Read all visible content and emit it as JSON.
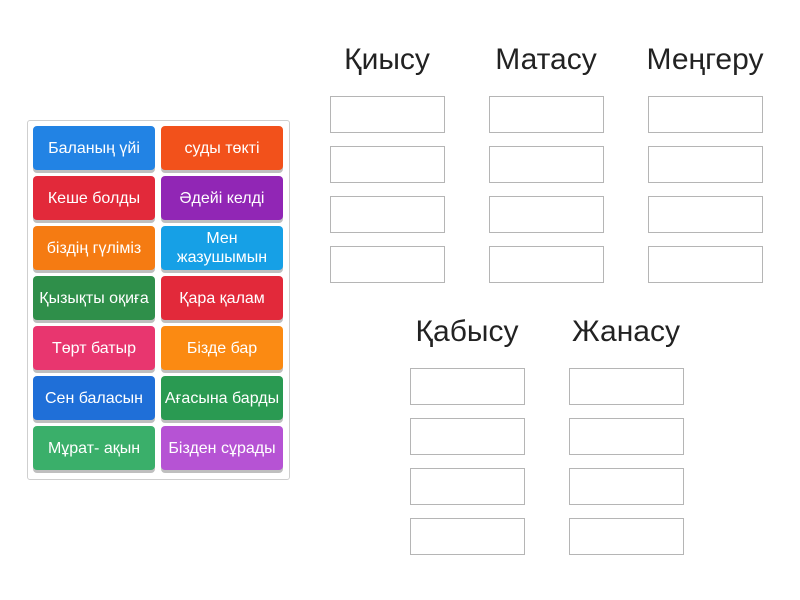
{
  "tiles": [
    {
      "label": "Баланың үйі",
      "color": "#2283e4"
    },
    {
      "label": "суды төкті",
      "color": "#f2511b"
    },
    {
      "label": "Кеше болды",
      "color": "#e2293a"
    },
    {
      "label": "Әдейі келді",
      "color": "#9126b5"
    },
    {
      "label": "біздің гүліміз",
      "color": "#f57b12"
    },
    {
      "label": "Мен жазушымын",
      "color": "#16a0e6"
    },
    {
      "label": "Қызықты оқиға",
      "color": "#2f8f4a"
    },
    {
      "label": "Қара қалам",
      "color": "#e2293a"
    },
    {
      "label": "Төрт батыр",
      "color": "#e8366f"
    },
    {
      "label": "Бізде бар",
      "color": "#fb8a12"
    },
    {
      "label": "Сен баласын",
      "color": "#1f6fd8"
    },
    {
      "label": "Ағасына барды",
      "color": "#2a9a52"
    },
    {
      "label": "Мұрат- ақын",
      "color": "#3aaf6a"
    },
    {
      "label": "Бізден сұрады",
      "color": "#b653d4"
    }
  ],
  "groups": [
    {
      "title": "Қиысу"
    },
    {
      "title": "Матасу"
    },
    {
      "title": "Меңгеру"
    },
    {
      "title": "Қабысу"
    },
    {
      "title": "Жанасу"
    }
  ]
}
